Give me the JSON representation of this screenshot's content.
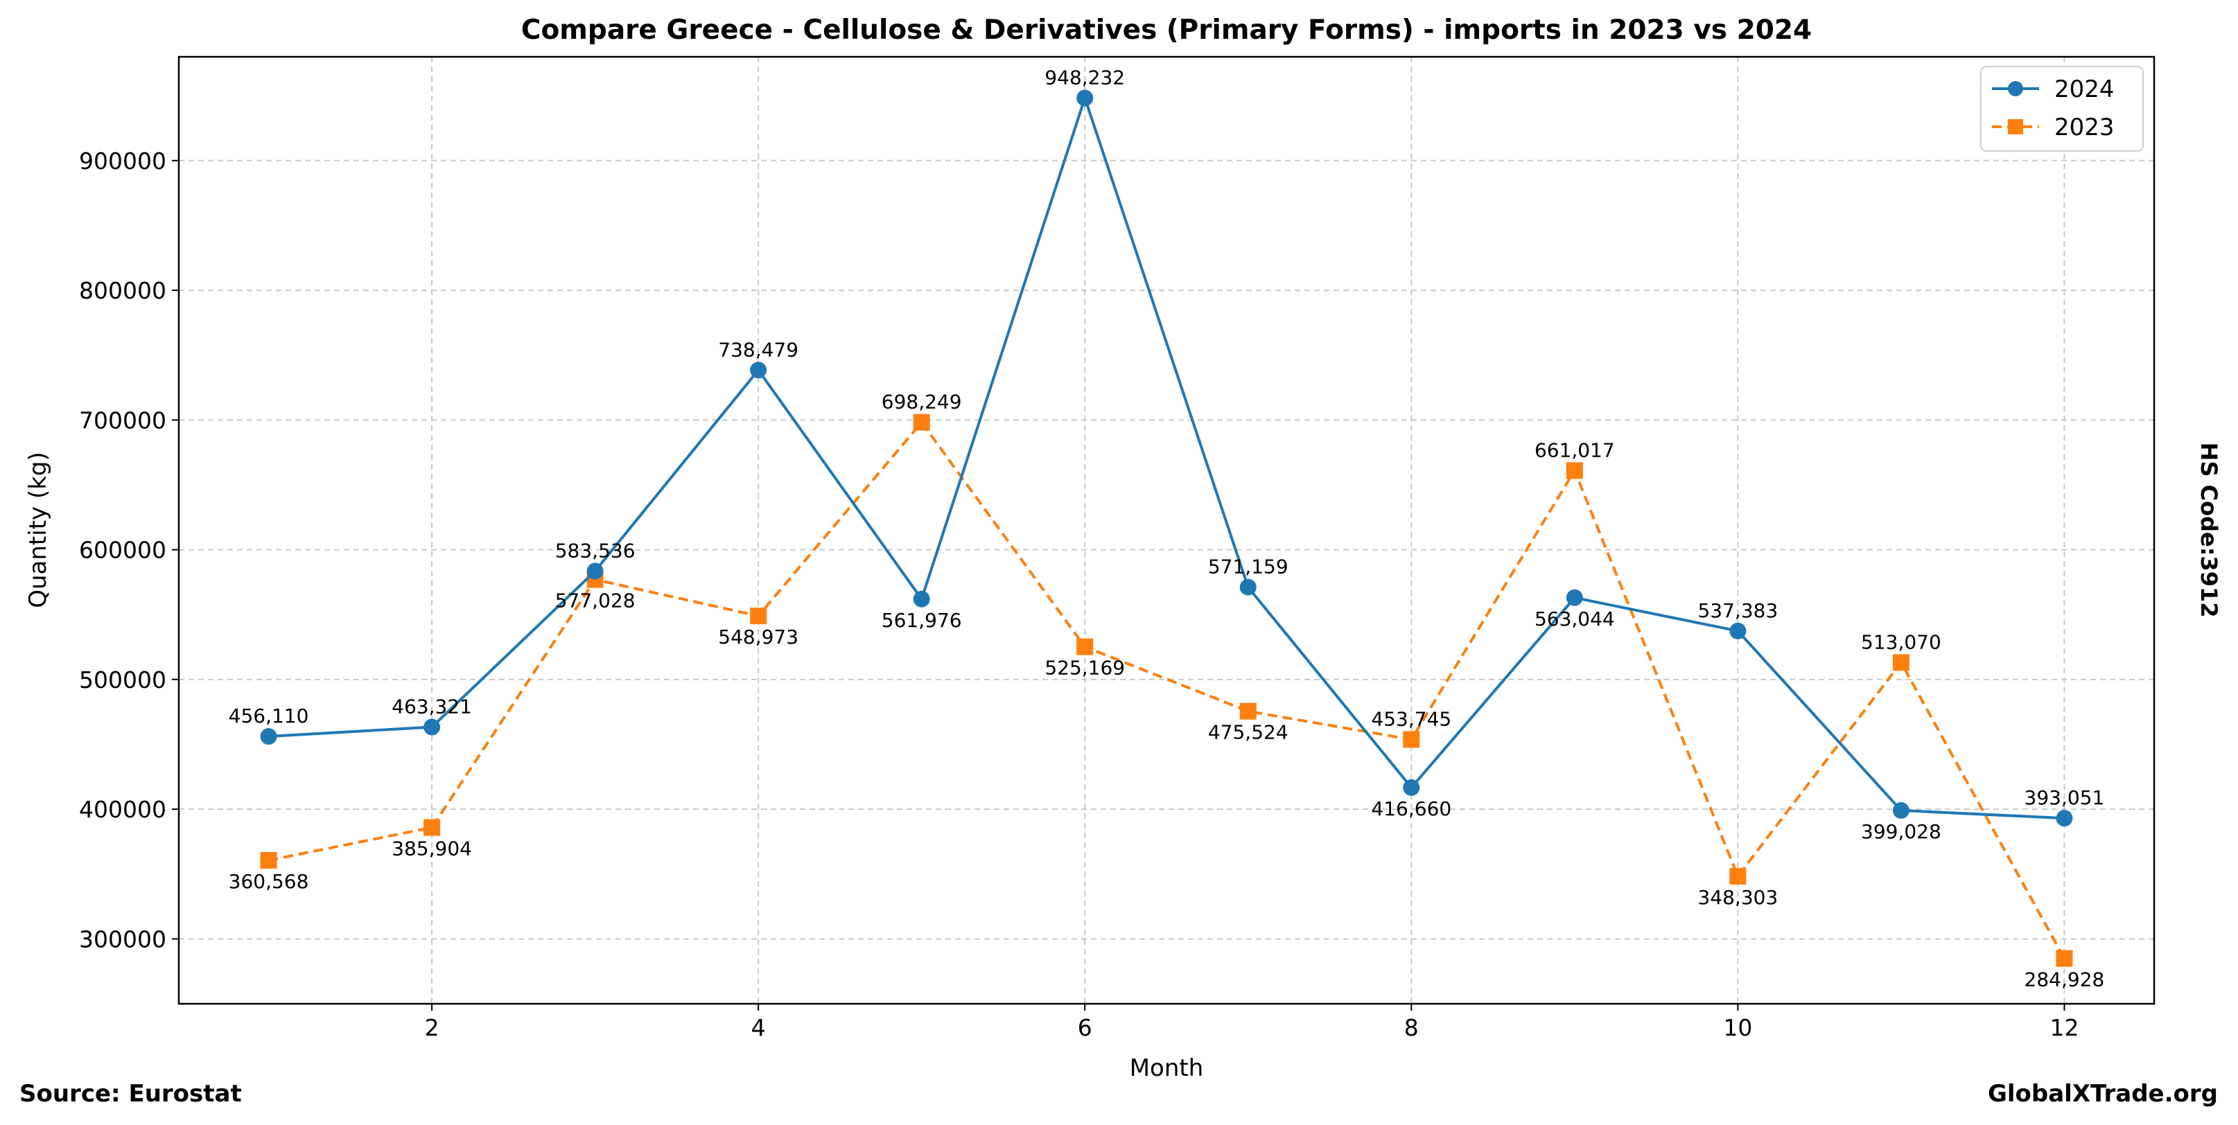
{
  "chart_data": {
    "type": "line",
    "title": "Compare Greece - Cellulose & Derivatives (Primary Forms) - imports in 2023 vs 2024",
    "xlabel": "Month",
    "ylabel": "Quantity (kg)",
    "x": [
      1,
      2,
      3,
      4,
      5,
      6,
      7,
      8,
      9,
      10,
      11,
      12
    ],
    "xlim": [
      0.45,
      12.55
    ],
    "ylim": [
      250000,
      980000
    ],
    "xticks": [
      2,
      4,
      6,
      8,
      10,
      12
    ],
    "yticks": [
      300000,
      400000,
      500000,
      600000,
      700000,
      800000,
      900000
    ],
    "grid": true,
    "legend_position": "top-right",
    "series": [
      {
        "name": "2024",
        "color": "#1f77b4",
        "marker": "circle",
        "linestyle": "solid",
        "values": [
          456110,
          463321,
          583536,
          738479,
          561976,
          948232,
          571159,
          416660,
          563044,
          537383,
          399028,
          393051
        ],
        "labels": [
          "456,110",
          "463,321",
          "583,536",
          "738,479",
          "561,976",
          "948,232",
          "571,159",
          "416,660",
          "563,044",
          "537,383",
          "399,028",
          "393,051"
        ]
      },
      {
        "name": "2023",
        "color": "#ff7f0e",
        "marker": "square",
        "linestyle": "dashed",
        "values": [
          360568,
          385904,
          577028,
          548973,
          698249,
          525169,
          475524,
          453745,
          661017,
          348303,
          513070,
          284928
        ],
        "labels": [
          "360,568",
          "385,904",
          "577,028",
          "548,973",
          "698,249",
          "525,169",
          "475,524",
          "453,745",
          "661,017",
          "348,303",
          "513,070",
          "284,928"
        ]
      }
    ]
  },
  "footer": {
    "source": "Source: Eurostat",
    "brand": "GlobalXTrade.org"
  },
  "side_label": "HS Code:3912"
}
